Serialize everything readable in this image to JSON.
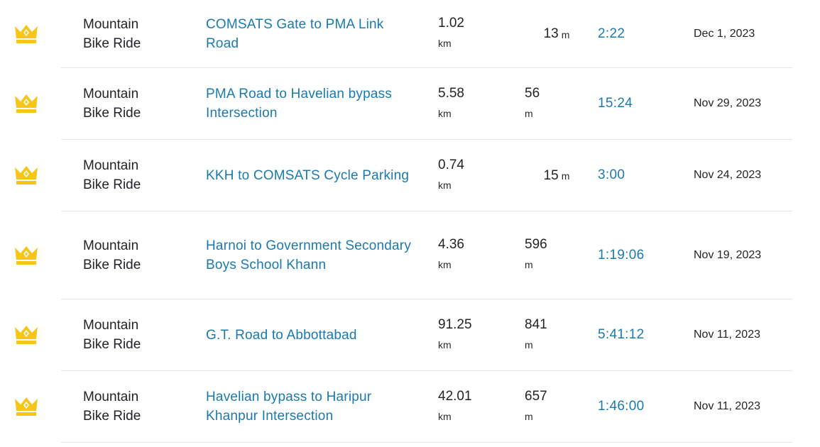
{
  "colors": {
    "link": "#1a7ab0",
    "crown": "#f5c518",
    "text": "#242428",
    "divider": "#e6e6eb"
  },
  "rows": [
    {
      "icon": "crown-icon",
      "sport": "Mountain\nBike Ride",
      "segment": "COMSATS Gate to PMA Link Road",
      "distance": "1.02",
      "distance_unit": "km",
      "elevation": "13",
      "elevation_unit": "m",
      "time": "2:22",
      "date": "Dec 1, 2023"
    },
    {
      "icon": "crown-icon",
      "sport": "Mountain\nBike Ride",
      "segment": "PMA Road to Havelian bypass Intersection",
      "distance": "5.58",
      "distance_unit": "km",
      "elevation": "56",
      "elevation_unit": "m",
      "time": "15:24",
      "date": "Nov 29, 2023"
    },
    {
      "icon": "crown-icon",
      "sport": "Mountain\nBike Ride",
      "segment": "KKH to COMSATS Cycle Parking",
      "distance": "0.74",
      "distance_unit": "km",
      "elevation": "15",
      "elevation_unit": "m",
      "time": "3:00",
      "date": "Nov 24, 2023"
    },
    {
      "icon": "crown-icon",
      "sport": "Mountain\nBike Ride",
      "segment": "Harnoi to Government Secondary Boys School Khann",
      "distance": "4.36",
      "distance_unit": "km",
      "elevation": "596",
      "elevation_unit": "m",
      "time": "1:19:06",
      "date": "Nov 19, 2023"
    },
    {
      "icon": "crown-icon",
      "sport": "Mountain\nBike Ride",
      "segment": "G.T. Road to Abbottabad",
      "distance": "91.25",
      "distance_unit": "km",
      "elevation": "841",
      "elevation_unit": "m",
      "time": "5:41:12",
      "date": "Nov 11, 2023"
    },
    {
      "icon": "crown-icon",
      "sport": "Mountain\nBike Ride",
      "segment": "Havelian bypass to Haripur Khanpur Intersection",
      "distance": "42.01",
      "distance_unit": "km",
      "elevation": "657",
      "elevation_unit": "m",
      "time": "1:46:00",
      "date": "Nov 11, 2023"
    }
  ]
}
